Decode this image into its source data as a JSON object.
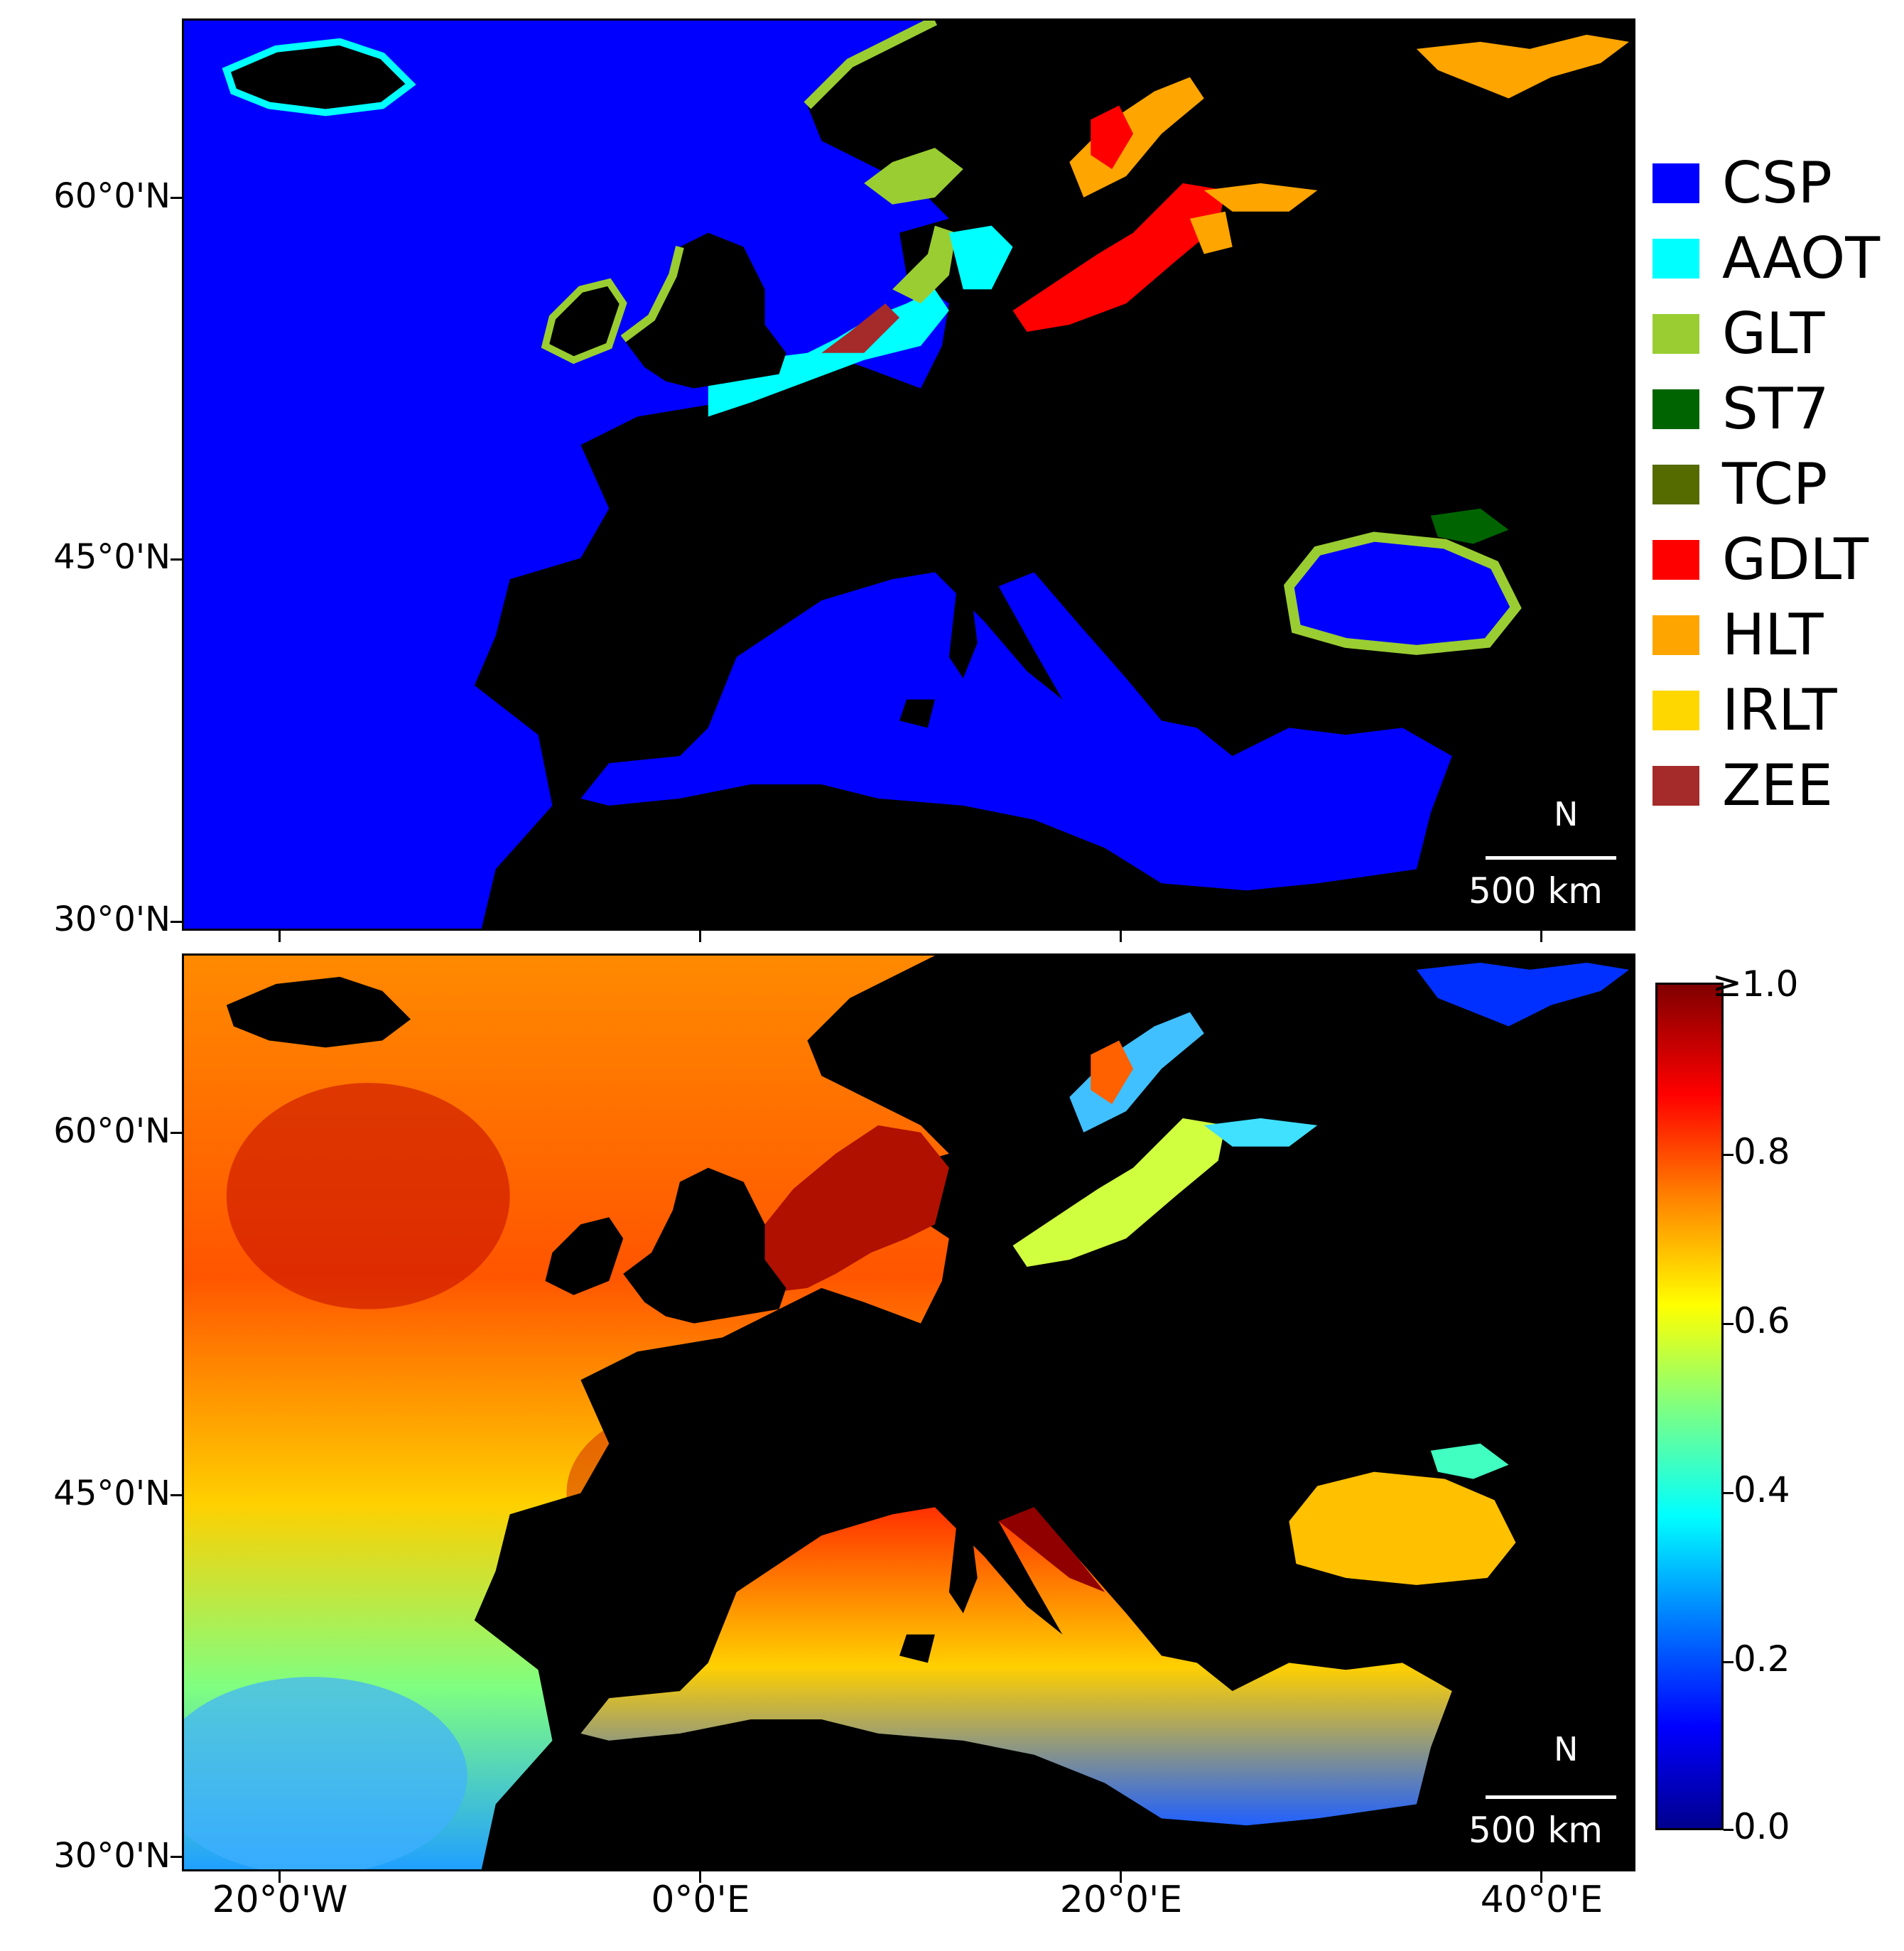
{
  "latitude_labels": [
    "60°0'N",
    "45°0'N",
    "30°0'N"
  ],
  "longitude_labels": [
    "20°0'W",
    "0°0'E",
    "20°0'E",
    "40°0'E"
  ],
  "legend": {
    "items": [
      {
        "label": "CSP",
        "color": "#0000ff"
      },
      {
        "label": "AAOT",
        "color": "#00ffff"
      },
      {
        "label": "GLT",
        "color": "#9acd32"
      },
      {
        "label": "ST7",
        "color": "#006400"
      },
      {
        "label": "TCP",
        "color": "#556b00"
      },
      {
        "label": "GDLT",
        "color": "#ff0000"
      },
      {
        "label": "HLT",
        "color": "#ffa500"
      },
      {
        "label": "IRLT",
        "color": "#ffd700"
      },
      {
        "label": "ZEE",
        "color": "#a52a2a"
      }
    ]
  },
  "scale_bar": {
    "label": "500 km"
  },
  "north_arrow": {
    "label": "N"
  },
  "colorbar": {
    "ticks": [
      "≥1.0",
      "0.8",
      "0.6",
      "0.4",
      "0.2",
      "0.0"
    ]
  }
}
